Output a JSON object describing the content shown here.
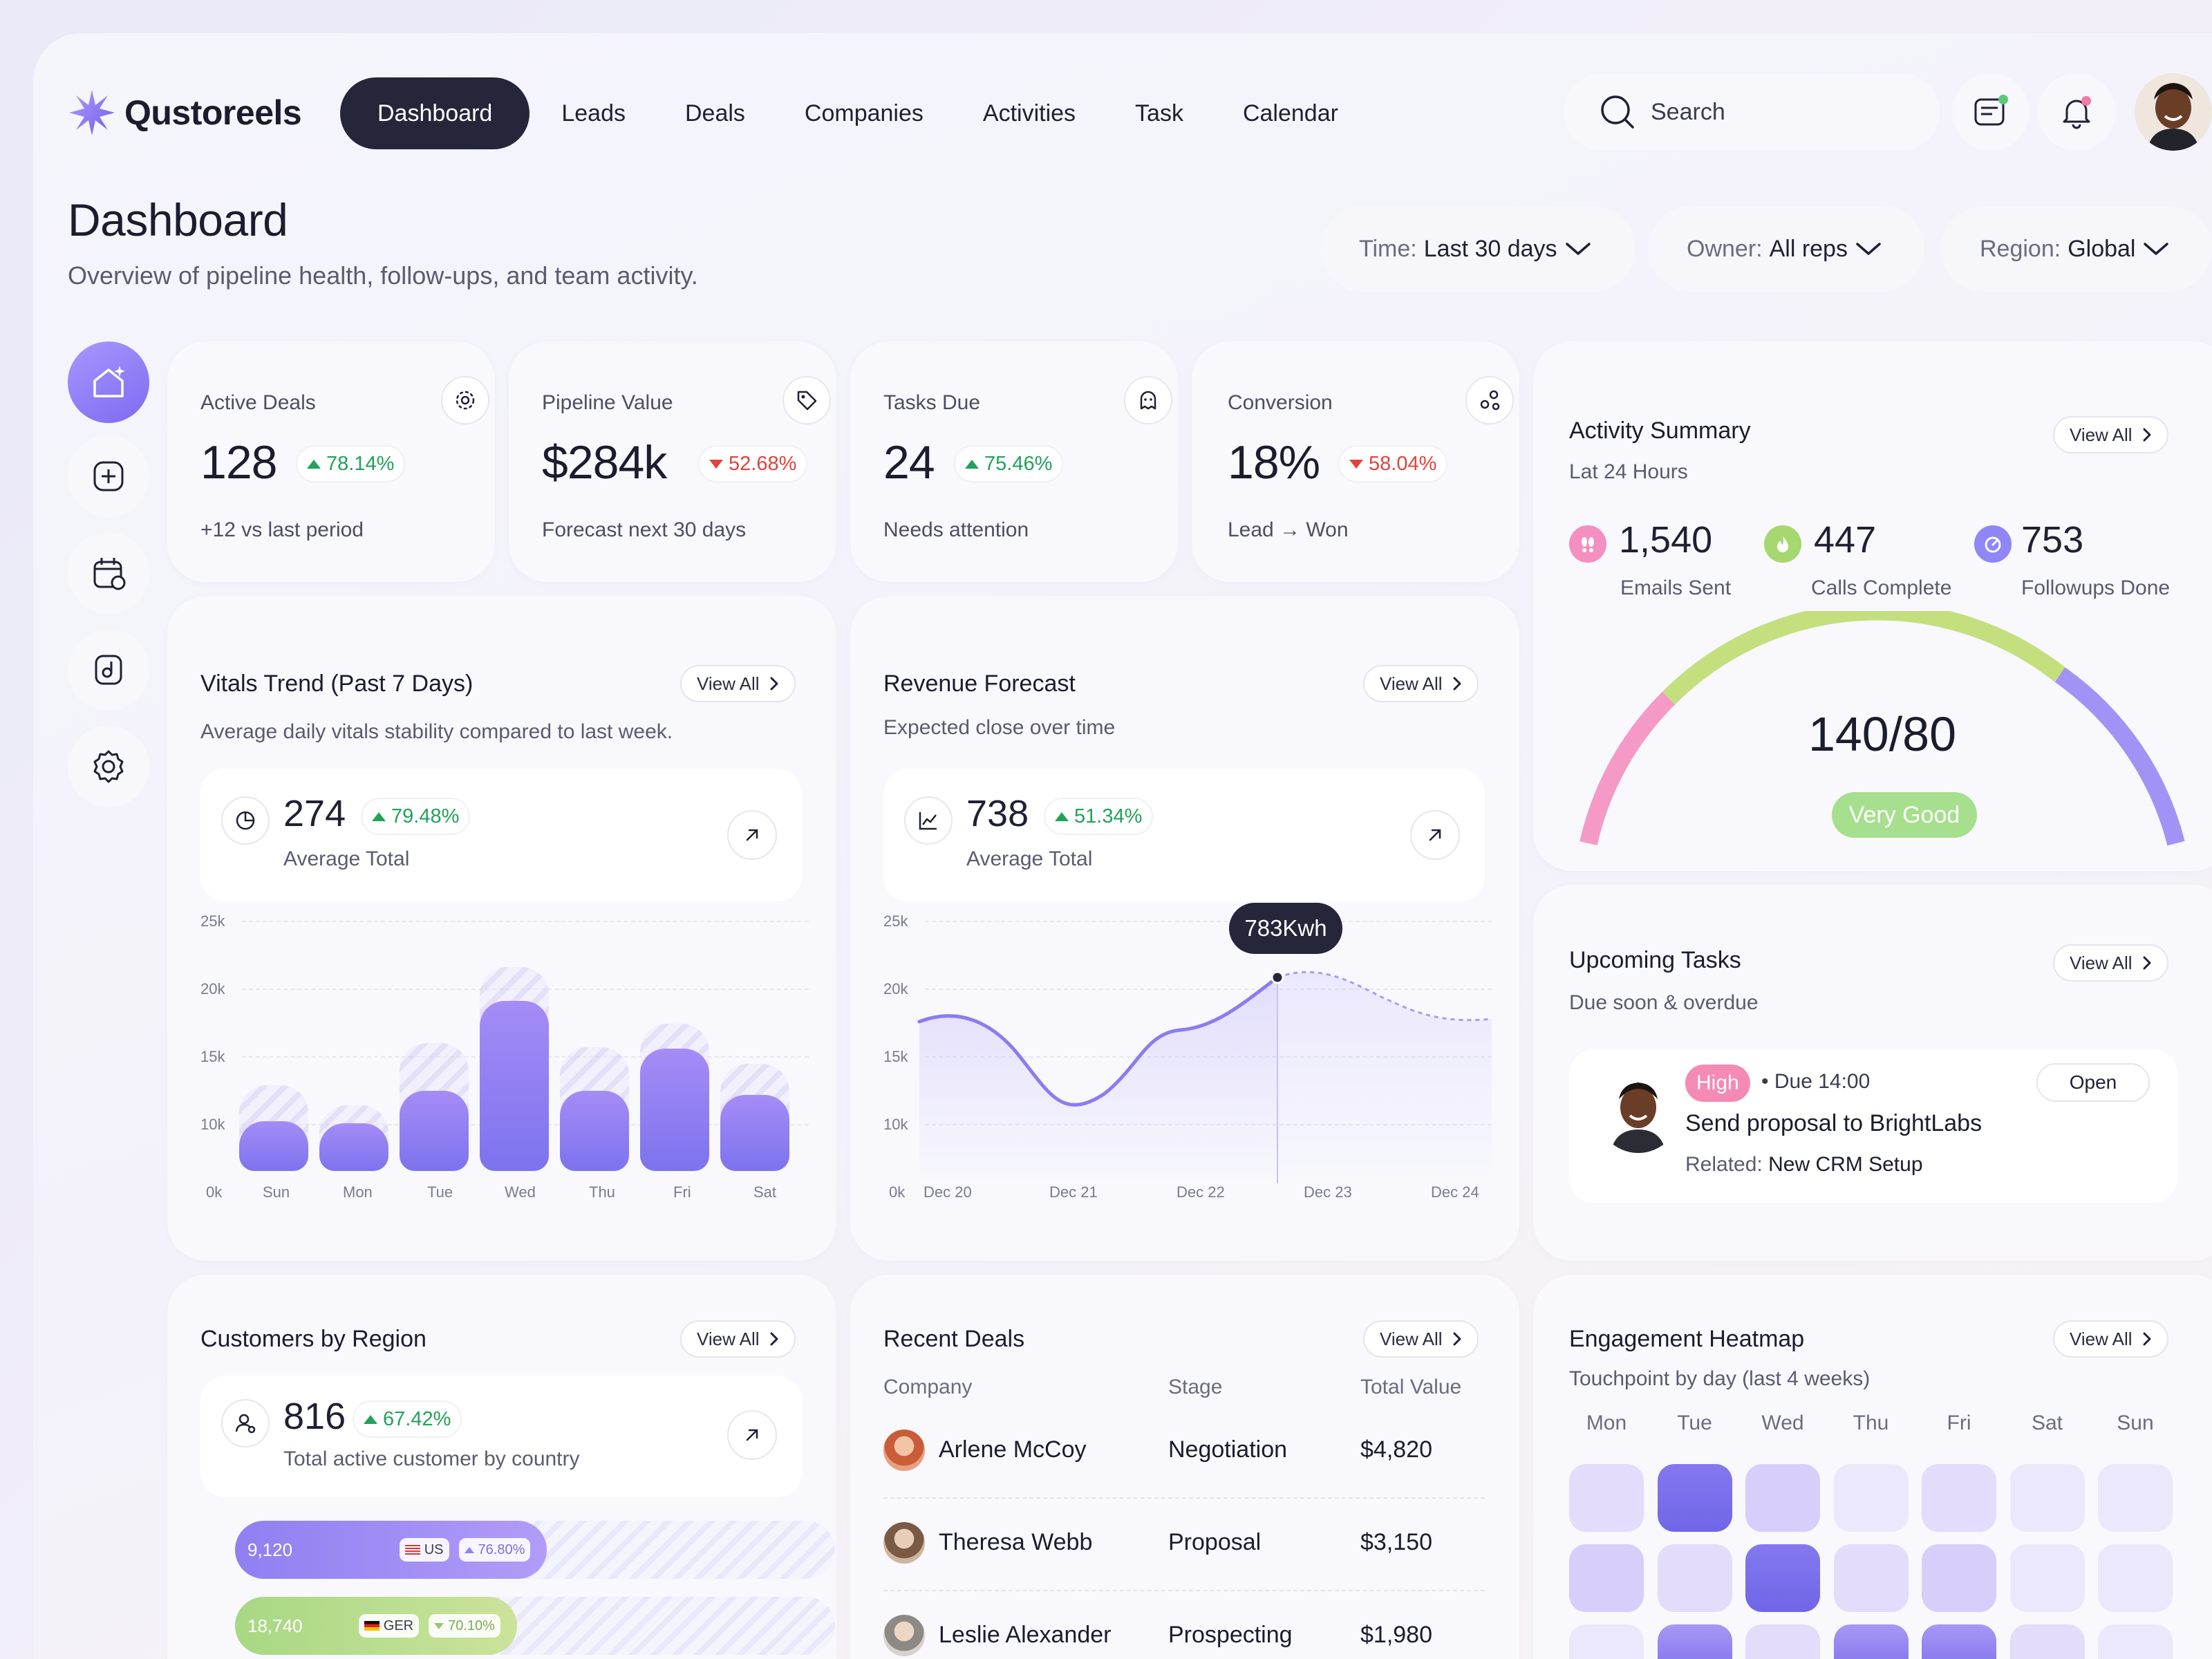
{
  "brand": {
    "name": "Qustoreels"
  },
  "nav": {
    "items": [
      {
        "label": "Dashboard",
        "active": true
      },
      {
        "label": "Leads"
      },
      {
        "label": "Deals"
      },
      {
        "label": "Companies"
      },
      {
        "label": "Activities"
      },
      {
        "label": "Task"
      },
      {
        "label": "Calendar"
      }
    ]
  },
  "search": {
    "label": "Search"
  },
  "header": {
    "title": "Dashboard",
    "subtitle": "Overview of pipeline health, follow-ups, and team activity."
  },
  "filters": {
    "time": {
      "label": "Time:",
      "value": "Last 30 days"
    },
    "owner": {
      "label": "Owner:",
      "value": "All reps"
    },
    "region": {
      "label": "Region:",
      "value": "Global"
    }
  },
  "stats": [
    {
      "label": "Active Deals",
      "value": "128",
      "change": "78.14%",
      "trend": "up",
      "sub": "+12 vs last period",
      "icon": "gear-icon"
    },
    {
      "label": "Pipeline Value",
      "value": "$284k",
      "change": "52.68%",
      "trend": "down",
      "sub": "Forecast next 30 days",
      "icon": "tag-icon"
    },
    {
      "label": "Tasks Due",
      "value": "24",
      "change": "75.46%",
      "trend": "up",
      "sub": "Needs attention",
      "icon": "ghost-icon"
    },
    {
      "label": "Conversion",
      "value": "18%",
      "change": "58.04%",
      "trend": "down",
      "sub": "Lead → Won",
      "icon": "nodes-icon"
    }
  ],
  "view_all": "View All",
  "vitals": {
    "title": "Vitals Trend (Past 7 Days)",
    "subtitle": "Average daily vitals stability compared to last week.",
    "value": "274",
    "change": "79.48%",
    "value_label": "Average Total"
  },
  "revenue": {
    "title": "Revenue Forecast",
    "subtitle": "Expected close over time",
    "value": "738",
    "change": "51.34%",
    "value_label": "Average Total",
    "tooltip": "783Kwh"
  },
  "chart_data": [
    {
      "type": "bar",
      "categories": [
        "Sun",
        "Mon",
        "Tue",
        "Wed",
        "Thu",
        "Fri",
        "Sat"
      ],
      "series": [
        {
          "values": [
            4800,
            4600,
            7800,
            16500,
            7800,
            11900,
            7400
          ]
        },
        {
          "values": [
            8300,
            6400,
            12400,
            19800,
            12000,
            14300,
            10400
          ]
        }
      ],
      "y_ticks": [
        "25k",
        "20k",
        "15k",
        "10k",
        "0k"
      ],
      "ylim": [
        0,
        25000
      ]
    },
    {
      "type": "line",
      "x_ticks": [
        "Dec 20",
        "Dec 21",
        "Dec 22",
        "Dec 23",
        "Dec 24"
      ],
      "y_ticks": [
        "25k",
        "20k",
        "15k",
        "10k",
        "0k"
      ],
      "ylim": [
        0,
        25000
      ],
      "highlight": {
        "x": "Dec 23",
        "label": "783Kwh"
      }
    }
  ],
  "activity": {
    "title": "Activity Summary",
    "subtitle": "Lat 24 Hours",
    "metrics": [
      {
        "value": "1,540",
        "label": "Emails Sent",
        "color": "#f48fc1"
      },
      {
        "value": "447",
        "label": "Calls Complete",
        "color": "#a6d86f"
      },
      {
        "value": "753",
        "label": "Followups Done",
        "color": "#8f86f7"
      }
    ],
    "gauge_value": "140/80",
    "gauge_status": "Very Good"
  },
  "tasks": {
    "title": "Upcoming Tasks",
    "subtitle": "Due soon & overdue",
    "item": {
      "priority": "High",
      "due": "• Due 14:00",
      "title": "Send proposal to BrightLabs",
      "related_label": "Related:",
      "related_value": "New CRM Setup",
      "action": "Open"
    }
  },
  "customers": {
    "title": "Customers by Region",
    "value": "816",
    "change": "67.42%",
    "value_label": "Total active customer by country",
    "regions": [
      {
        "value": "9,120",
        "code": "US",
        "change": "76.80%",
        "fill": 0.52
      },
      {
        "value": "18,740",
        "code": "GER",
        "change": "70.10%",
        "fill": 0.47
      },
      {
        "value": "",
        "code": "",
        "change": "",
        "fill": 0.62
      }
    ]
  },
  "deals": {
    "title": "Recent Deals",
    "columns": [
      "Company",
      "Stage",
      "Total Value"
    ],
    "rows": [
      {
        "company": "Arlene McCoy",
        "stage": "Negotiation",
        "value": "$4,820"
      },
      {
        "company": "Theresa Webb",
        "stage": "Proposal",
        "value": "$3,150"
      },
      {
        "company": "Leslie Alexander",
        "stage": "Prospecting",
        "value": "$1,980"
      }
    ]
  },
  "heatmap": {
    "title": "Engagement Heatmap",
    "subtitle": "Touchpoint by day (last 4 weeks)",
    "days": [
      "Mon",
      "Tue",
      "Wed",
      "Thu",
      "Fri",
      "Sat",
      "Sun"
    ],
    "levels": [
      [
        2,
        5,
        3,
        1,
        2,
        1,
        1
      ],
      [
        3,
        2,
        5,
        2,
        3,
        1,
        1
      ],
      [
        1,
        4,
        2,
        4,
        4,
        2,
        1
      ]
    ]
  }
}
